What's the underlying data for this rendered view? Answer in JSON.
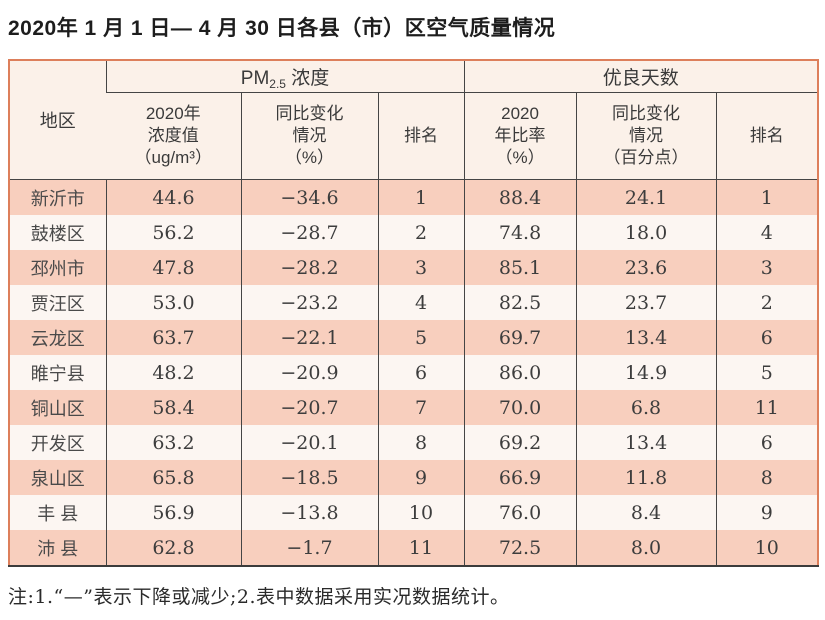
{
  "title": "2020年 1 月 1 日— 4 月 30 日各县（市）区空气质量情况",
  "table": {
    "header": {
      "region": "地区",
      "pm_group": {
        "prefix": "PM",
        "sub": "2.5",
        "suffix": " 浓度"
      },
      "good_days_group": "优良天数",
      "pm_value": "2020年\n浓度值\n（ug/m³）",
      "pm_change": "同比变化\n情况\n（%）",
      "pm_rank": "排名",
      "ratio": "2020\n年比率\n（%）",
      "ratio_change": "同比变化\n情况\n（百分点）",
      "rank": "排名"
    },
    "rows": [
      {
        "region": "新沂市",
        "pm_value": "44.6",
        "pm_change": "−34.6",
        "pm_rank": "1",
        "ratio": "88.4",
        "ratio_change": "24.1",
        "rank": "1"
      },
      {
        "region": "鼓楼区",
        "pm_value": "56.2",
        "pm_change": "−28.7",
        "pm_rank": "2",
        "ratio": "74.8",
        "ratio_change": "18.0",
        "rank": "4"
      },
      {
        "region": "邳州市",
        "pm_value": "47.8",
        "pm_change": "−28.2",
        "pm_rank": "3",
        "ratio": "85.1",
        "ratio_change": "23.6",
        "rank": "3"
      },
      {
        "region": "贾汪区",
        "pm_value": "53.0",
        "pm_change": "−23.2",
        "pm_rank": "4",
        "ratio": "82.5",
        "ratio_change": "23.7",
        "rank": "2"
      },
      {
        "region": "云龙区",
        "pm_value": "63.7",
        "pm_change": "−22.1",
        "pm_rank": "5",
        "ratio": "69.7",
        "ratio_change": "13.4",
        "rank": "6"
      },
      {
        "region": "睢宁县",
        "pm_value": "48.2",
        "pm_change": "−20.9",
        "pm_rank": "6",
        "ratio": "86.0",
        "ratio_change": "14.9",
        "rank": "5"
      },
      {
        "region": "铜山区",
        "pm_value": "58.4",
        "pm_change": "−20.7",
        "pm_rank": "7",
        "ratio": "70.0",
        "ratio_change": "6.8",
        "rank": "11"
      },
      {
        "region": "开发区",
        "pm_value": "63.2",
        "pm_change": "−20.1",
        "pm_rank": "8",
        "ratio": "69.2",
        "ratio_change": "13.4",
        "rank": "6"
      },
      {
        "region": "泉山区",
        "pm_value": "65.8",
        "pm_change": "−18.5",
        "pm_rank": "9",
        "ratio": "66.9",
        "ratio_change": "11.8",
        "rank": "8"
      },
      {
        "region": "丰 县",
        "pm_value": "56.9",
        "pm_change": "−13.8",
        "pm_rank": "10",
        "ratio": "76.0",
        "ratio_change": "8.4",
        "rank": "9"
      },
      {
        "region": "沛 县",
        "pm_value": "62.8",
        "pm_change": "−1.7",
        "pm_rank": "11",
        "ratio": "72.5",
        "ratio_change": "8.0",
        "rank": "10"
      }
    ]
  },
  "note": "注:1.“—”表示下降或减少;2.表中数据采用实况数据统计。",
  "colors": {
    "border_accent": "#dd7f5b",
    "row_pink": "#f8cfbe",
    "row_light": "#fcf6f2",
    "header_bg": "#fbf1e9",
    "grid_line": "#454545"
  }
}
